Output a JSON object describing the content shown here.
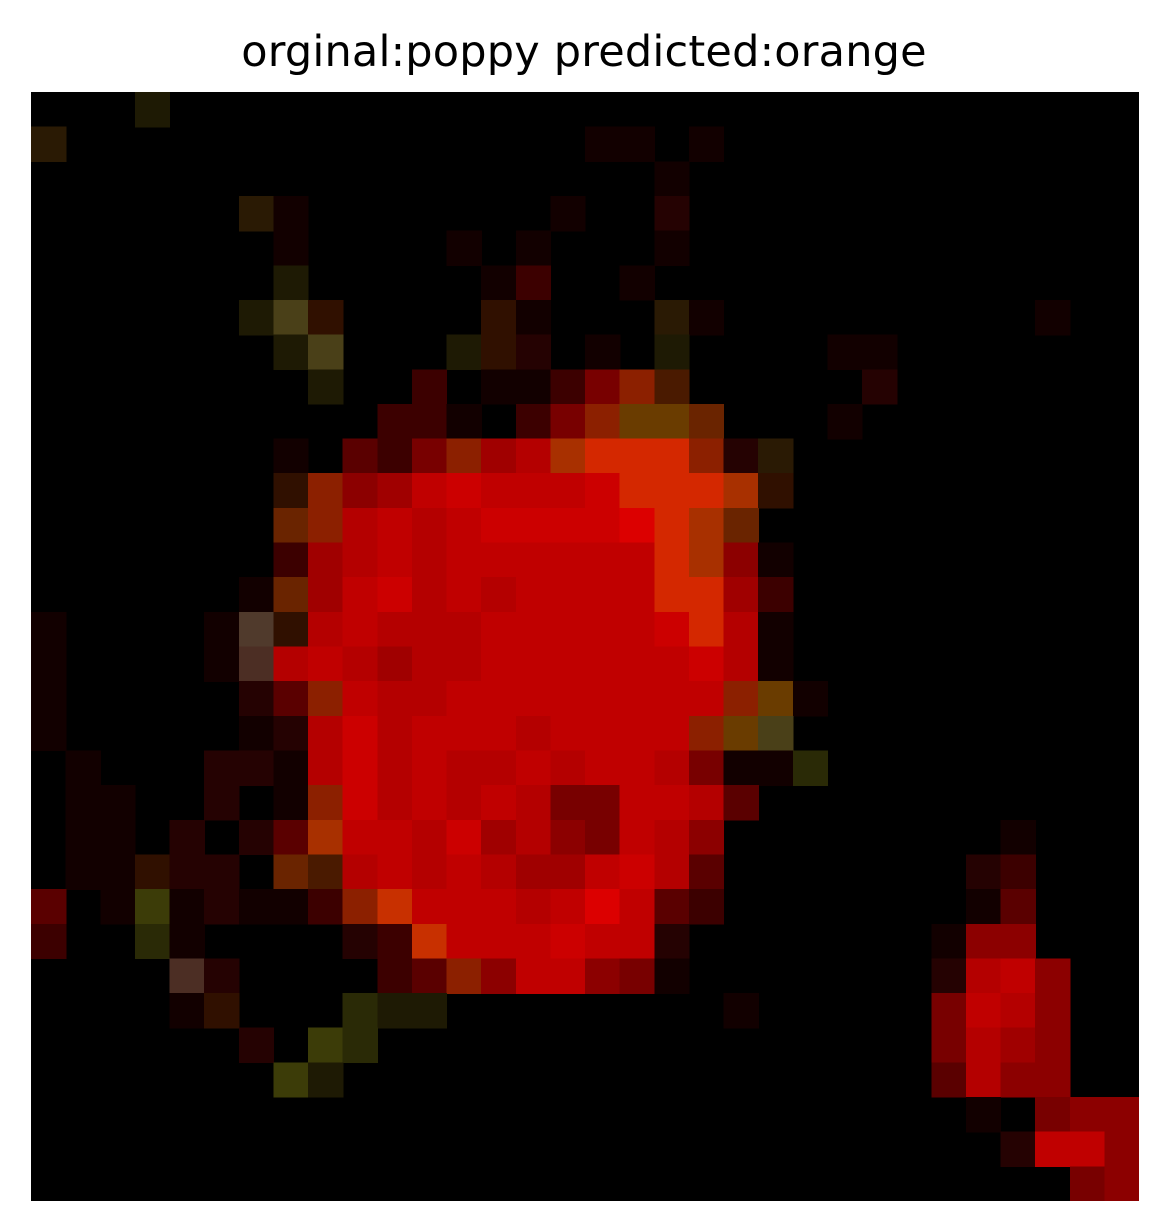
{
  "figure": {
    "title": "orginal:poppy predicted:orange"
  },
  "image": {
    "subject": "poppy-flower-pixelated",
    "colors": {
      "background": "#000000",
      "petal_red": "#c00000",
      "petal_bright": "#dc0000",
      "petal_orange": "#c83000",
      "petal_dark": "#800000",
      "stem_olive": "#3c3c08"
    }
  }
}
